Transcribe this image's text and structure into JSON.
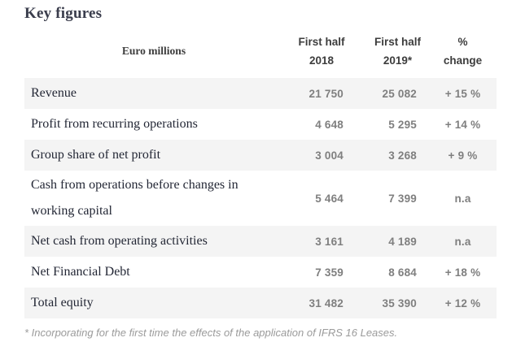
{
  "page": {
    "title": "Key figures",
    "footnote": "* Incorporating for the first time the effects of the application of IFRS 16 Leases."
  },
  "table": {
    "header": {
      "col1": "Euro millions",
      "col2_line1": "First half",
      "col2_line2": "2018",
      "col3_line1": "First half",
      "col3_line2": "2019*",
      "col4_line1": "%",
      "col4_line2": "change"
    },
    "rows": [
      {
        "label": "Revenue",
        "h1_2018": "21 750",
        "h1_2019": "25 082",
        "change": "+ 15 %"
      },
      {
        "label": "Profit from recurring operations",
        "h1_2018": "4 648",
        "h1_2019": "5 295",
        "change": "+ 14 %"
      },
      {
        "label": "Group share of net profit",
        "h1_2018": "3 004",
        "h1_2019": "3 268",
        "change": "+ 9 %"
      },
      {
        "label": "Cash from operations before changes in working capital",
        "h1_2018": "5 464",
        "h1_2019": "7 399",
        "change": "n.a"
      },
      {
        "label": "Net cash from operating activities",
        "h1_2018": "3 161",
        "h1_2019": "4 189",
        "change": "n.a"
      },
      {
        "label": "Net Financial Debt",
        "h1_2018": "7 359",
        "h1_2019": "8 684",
        "change": "+ 18 %"
      },
      {
        "label": "Total equity",
        "h1_2018": "31 482",
        "h1_2019": "35 390",
        "change": "+ 12 %"
      }
    ]
  },
  "colors": {
    "row_alt_bg": "#f4f4f4",
    "number_text": "#7f7f7f",
    "header_text": "#3d3d3d",
    "label_text": "#232735",
    "title_text": "#3a3d4c",
    "footnote_text": "#9b9b9b"
  }
}
